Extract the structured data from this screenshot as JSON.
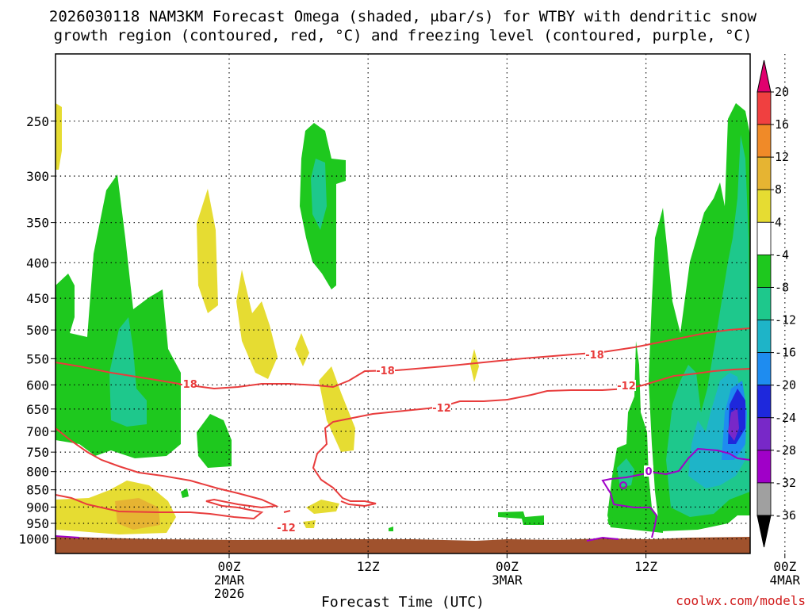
{
  "title_line1": "2026030118 NAM3KM Forecast Omega (shaded, μbar/s) for WTBY with dendritic snow",
  "title_line2": "growth region (contoured, red, °C) and freezing level (contoured, purple, °C)",
  "credit": "coolwx.com/models",
  "chart_data": {
    "type": "time-height contour",
    "title": "2026030118 NAM3KM Forecast Omega (shaded, μbar/s) for WTBY with dendritic snow growth region (contoured, red, °C) and freezing level (contoured, purple, °C)",
    "xlabel": "Forecast Time (UTC)",
    "ylabel": "",
    "xlim_hours": [
      -15,
      45
    ],
    "ylim_hpa": [
      1050,
      200
    ],
    "y_scale": "log-pressure",
    "grid": true,
    "x_ticks": [
      {
        "hour": 0,
        "lines": [
          "00Z",
          "2MAR",
          "2026"
        ]
      },
      {
        "hour": 12,
        "lines": [
          "12Z"
        ]
      },
      {
        "hour": 24,
        "lines": [
          "00Z",
          "3MAR"
        ]
      },
      {
        "hour": 36,
        "lines": [
          "12Z"
        ]
      },
      {
        "hour": 48,
        "lines": [
          "00Z",
          "4MAR"
        ]
      }
    ],
    "y_ticks": [
      250,
      300,
      350,
      400,
      450,
      500,
      550,
      600,
      650,
      700,
      750,
      800,
      850,
      900,
      950,
      1000
    ],
    "colorbar": {
      "labels": [
        "20",
        "16",
        "12",
        "8",
        "4",
        "-4",
        "-8",
        "-12",
        "-16",
        "-20",
        "-24",
        "-28",
        "-32",
        "-36"
      ],
      "colors": [
        "#e0006e",
        "#f04040",
        "#f08a28",
        "#e6b432",
        "#e6dc32",
        "#ffffff",
        "#1ec81e",
        "#1ec88c",
        "#1eb4c8",
        "#1e8cf0",
        "#1e28dc",
        "#7828c8",
        "#a000c8",
        "#a0a0a0",
        "#000000"
      ]
    },
    "contours": [
      {
        "field": "temperature",
        "color": "#e83c3c",
        "value": -18,
        "labels": [
          "-18",
          "-18",
          "-18"
        ]
      },
      {
        "field": "temperature",
        "color": "#e83c3c",
        "value": -12,
        "labels": [
          "-12",
          "-12",
          "-12"
        ]
      },
      {
        "field": "freezing level",
        "color": "#a000c8",
        "value": 0,
        "labels": [
          "0"
        ]
      }
    ],
    "terrain_color": "#a0522d"
  }
}
